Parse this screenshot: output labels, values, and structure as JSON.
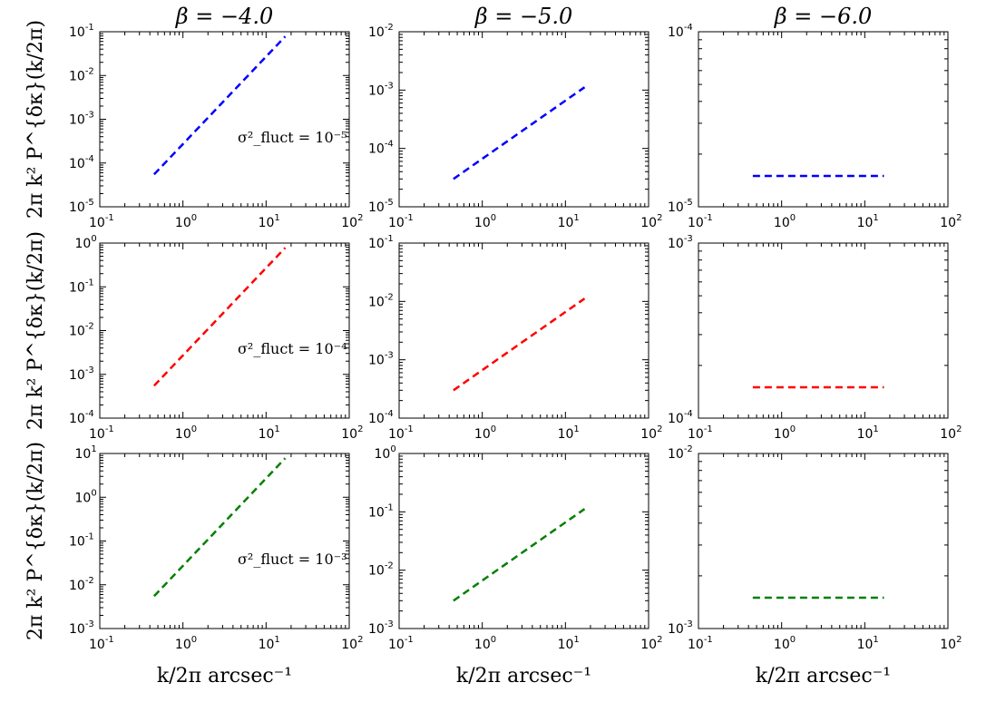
{
  "chart_data": {
    "type": "line",
    "layout": "3x3 grid of log-log panels",
    "columns": [
      {
        "title": "β = −4.0",
        "beta": -4.0
      },
      {
        "title": "β = −5.0",
        "beta": -5.0
      },
      {
        "title": "β = −6.0",
        "beta": -6.0
      }
    ],
    "rows": [
      {
        "color": "#0000ff",
        "sigma2_fluct": "10^-5",
        "annotation": "σ²_fluct = 10⁻⁵"
      },
      {
        "color": "#ff0000",
        "sigma2_fluct": "10^-4",
        "annotation": "σ²_fluct = 10⁻⁴"
      },
      {
        "color": "#008000",
        "sigma2_fluct": "10^-3",
        "annotation": "σ²_fluct = 10⁻³"
      }
    ],
    "ylabel": "2π k² P^{δκ}(k/2π)",
    "xlabel": "k/2π  arcsec⁻¹",
    "xscale": "log",
    "yscale": "log",
    "xlim": [
      0.1,
      100
    ],
    "line_style": "dashed",
    "panels": [
      {
        "row": 0,
        "col": 0,
        "ylim": [
          1e-05,
          0.1
        ],
        "x": [
          0.45,
          17
        ],
        "y": [
          5.5e-05,
          0.078
        ]
      },
      {
        "row": 0,
        "col": 1,
        "ylim": [
          1e-05,
          0.01
        ],
        "x": [
          0.45,
          17
        ],
        "y": [
          3e-05,
          0.00112
        ]
      },
      {
        "row": 0,
        "col": 2,
        "ylim": [
          1e-05,
          0.0001
        ],
        "x": [
          0.45,
          17
        ],
        "y": [
          1.5e-05,
          1.5e-05
        ]
      },
      {
        "row": 1,
        "col": 0,
        "ylim": [
          0.0001,
          1
        ],
        "x": [
          0.45,
          17
        ],
        "y": [
          0.00055,
          0.78
        ]
      },
      {
        "row": 1,
        "col": 1,
        "ylim": [
          0.0001,
          0.1
        ],
        "x": [
          0.45,
          17
        ],
        "y": [
          0.0003,
          0.0112
        ]
      },
      {
        "row": 1,
        "col": 2,
        "ylim": [
          0.0001,
          0.001
        ],
        "x": [
          0.45,
          17
        ],
        "y": [
          0.00015,
          0.00015
        ]
      },
      {
        "row": 2,
        "col": 0,
        "ylim": [
          0.001,
          10
        ],
        "x": [
          0.45,
          17
        ],
        "y": [
          0.0055,
          7.8
        ]
      },
      {
        "row": 2,
        "col": 1,
        "ylim": [
          0.001,
          1
        ],
        "x": [
          0.45,
          17
        ],
        "y": [
          0.003,
          0.112
        ]
      },
      {
        "row": 2,
        "col": 2,
        "ylim": [
          0.001,
          0.01
        ],
        "x": [
          0.45,
          17
        ],
        "y": [
          0.0015,
          0.0015
        ]
      }
    ]
  }
}
